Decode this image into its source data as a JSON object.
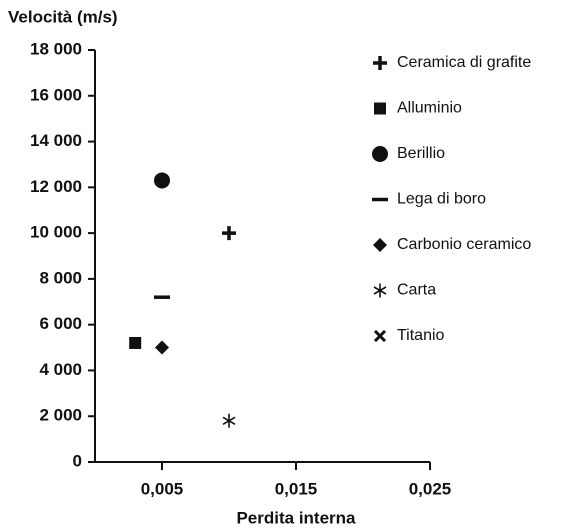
{
  "chart_data": {
    "type": "scatter",
    "y_label": "Velocità (m/s)",
    "x_label": "Perdita interna",
    "xlim": [
      0,
      0.025
    ],
    "xticks": [
      {
        "value": 0.005,
        "label": "0,005"
      },
      {
        "value": 0.015,
        "label": "0,015"
      },
      {
        "value": 0.025,
        "label": "0,025"
      }
    ],
    "ylim": [
      0,
      18000
    ],
    "yticks": [
      0,
      {
        "value": 2000,
        "label": "2 000"
      },
      {
        "value": 4000,
        "label": "4 000"
      },
      {
        "value": 6000,
        "label": "6 000"
      },
      {
        "value": 8000,
        "label": "8 000"
      },
      {
        "value": 10000,
        "label": "10 000"
      },
      {
        "value": 12000,
        "label": "12 000"
      },
      {
        "value": 14000,
        "label": "14 000"
      },
      {
        "value": 16000,
        "label": "16 000"
      },
      {
        "value": 18000,
        "label": "18 000"
      }
    ],
    "grid": false,
    "legend": "right",
    "series": [
      {
        "name": "Ceramica di grafite",
        "marker": "plus",
        "color": "#111111",
        "x": [
          0.01
        ],
        "values": [
          10000
        ]
      },
      {
        "name": "Alluminio",
        "marker": "square",
        "color": "#111111",
        "x": [
          0.003
        ],
        "values": [
          5200
        ]
      },
      {
        "name": "Berillio",
        "marker": "circle",
        "color": "#111111",
        "x": [
          0.005
        ],
        "values": [
          12300
        ]
      },
      {
        "name": "Lega di boro",
        "marker": "minus",
        "color": "#111111",
        "x": [
          0.005
        ],
        "values": [
          7200
        ]
      },
      {
        "name": "Carbonio ceramico",
        "marker": "diamond",
        "color": "#111111",
        "x": [
          0.005
        ],
        "values": [
          5000
        ]
      },
      {
        "name": "Carta",
        "marker": "asterisk",
        "color": "#111111",
        "x": [
          0.01
        ],
        "values": [
          1800
        ]
      },
      {
        "name": "Titanio",
        "marker": "cross",
        "color": "#111111",
        "x": [
          0.003
        ],
        "values": [
          5200
        ]
      }
    ]
  }
}
